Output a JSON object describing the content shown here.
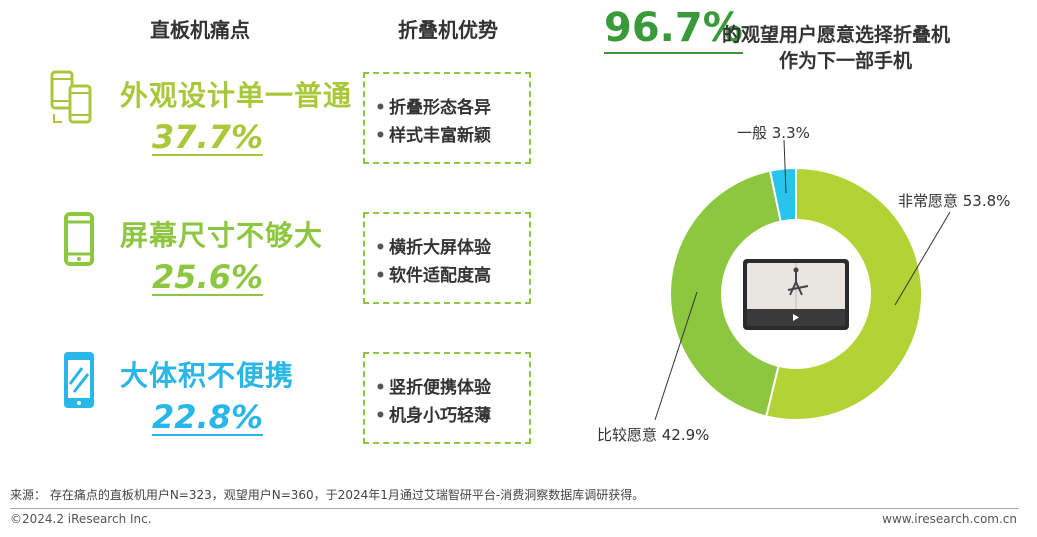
{
  "left_header": "直板机痛点",
  "mid_header": "折叠机优势",
  "pain_points": [
    {
      "title": "外观设计单一普通",
      "percent": "37.7%",
      "color": "#a8c83a",
      "icon": "two-phones-icon"
    },
    {
      "title": "屏幕尺寸不够大",
      "percent": "25.6%",
      "color": "#8dc63f",
      "icon": "phone-icon"
    },
    {
      "title": "大体积不便携",
      "percent": "22.8%",
      "color": "#29b6e8",
      "icon": "phone-slash-icon"
    }
  ],
  "advantages": [
    {
      "items": [
        "折叠形态各异",
        "样式丰富新颖"
      ]
    },
    {
      "items": [
        "横折大屏体验",
        "软件适配度高"
      ]
    },
    {
      "items": [
        "竖折便携体验",
        "机身小巧轻薄"
      ]
    }
  ],
  "headline": {
    "percent": "96.7%",
    "line1": "的观望用户愿意选择折叠机",
    "line2": "作为下一部手机"
  },
  "chart_data": {
    "type": "pie",
    "donut": true,
    "slices": [
      {
        "label": "非常愿意 53.8%",
        "name": "非常愿意",
        "value": 53.8,
        "color": "#b2d235"
      },
      {
        "label": "比较愿意 42.9%",
        "name": "比较愿意",
        "value": 42.9,
        "color": "#8dc63f"
      },
      {
        "label": "一般 3.3%",
        "name": "一般",
        "value": 3.3,
        "color": "#29c4ee"
      }
    ]
  },
  "footer": {
    "source": "来源： 存在痛点的直板机用户N=323，观望用户N=360，于2024年1月通过艾瑞智研平台-消费洞察数据库调研获得。",
    "copyright": "©2024.2 iResearch Inc.",
    "website": "www.iresearch.com.cn"
  }
}
